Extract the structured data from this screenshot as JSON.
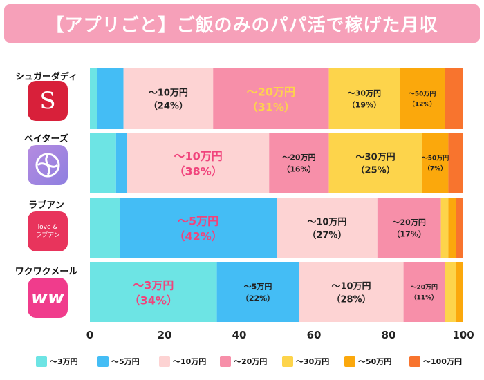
{
  "title": "【アプリごと】ご飯のみのパパ活で稼げた月収",
  "apps": [
    {
      "name": "シュガーダディ",
      "icon": "sugardaddy-s-logo-icon",
      "logo_text": "S",
      "color": "#d8203a"
    },
    {
      "name": "ペイターズ",
      "icon": "paters-swirl-logo-icon",
      "logo_text": "",
      "color": "#a57fd6"
    },
    {
      "name": "ラブアン",
      "icon": "loveanne-logo-icon",
      "logo_text": "love & ラブアン",
      "color": "#e8345c"
    },
    {
      "name": "ワクワクメール",
      "icon": "wakuwakumail-ww-logo-icon",
      "logo_text": "ww",
      "color": "#f03c8c"
    }
  ],
  "chart_data": {
    "type": "bar",
    "orientation": "horizontal",
    "stacked": true,
    "categories": [
      "シュガーダディ",
      "ペイターズ",
      "ラブアン",
      "ワクワクメール"
    ],
    "series": [
      {
        "name": "〜3万円",
        "color": "#6de4e4",
        "values": [
          2,
          7,
          8,
          34
        ]
      },
      {
        "name": "〜5万円",
        "color": "#44bdf5",
        "values": [
          7,
          3,
          42,
          22
        ]
      },
      {
        "name": "〜10万円",
        "color": "#fdd3d3",
        "values": [
          24,
          38,
          27,
          28
        ]
      },
      {
        "name": "〜20万円",
        "color": "#f78fa9",
        "values": [
          31,
          16,
          17,
          11
        ]
      },
      {
        "name": "〜30万円",
        "color": "#fdd44b",
        "values": [
          19,
          25,
          2,
          3
        ]
      },
      {
        "name": "〜50万円",
        "color": "#fba80c",
        "values": [
          12,
          7,
          2,
          2
        ]
      },
      {
        "name": "〜100万円",
        "color": "#f8742e",
        "values": [
          5,
          4,
          2,
          0
        ]
      }
    ],
    "bar_labels": [
      [
        {
          "series": 2,
          "line1": "〜10万円",
          "line2": "（24%）",
          "size": "m",
          "color": "#222222"
        },
        {
          "series": 3,
          "line1": "〜20万円",
          "line2": "（31%）",
          "size": "l",
          "color": "#fdd44b"
        },
        {
          "series": 4,
          "line1": "〜30万円",
          "line2": "（19%）",
          "size": "s",
          "color": "#222222"
        },
        {
          "series": 5,
          "line1": "〜50万円",
          "line2": "（12%）",
          "size": "xs",
          "color": "#222222"
        }
      ],
      [
        {
          "series": 2,
          "line1": "〜10万円",
          "line2": "（38%）",
          "size": "l",
          "color": "#f0447c"
        },
        {
          "series": 3,
          "line1": "〜20万円",
          "line2": "（16%）",
          "size": "s",
          "color": "#222222"
        },
        {
          "series": 4,
          "line1": "〜30万円",
          "line2": "（25%）",
          "size": "m",
          "color": "#222222"
        },
        {
          "series": 5,
          "line1": "〜50万円",
          "line2": "（7%）",
          "size": "xs",
          "color": "#222222"
        }
      ],
      [
        {
          "series": 1,
          "line1": "〜5万円",
          "line2": "（42%）",
          "size": "l",
          "color": "#f0447c"
        },
        {
          "series": 2,
          "line1": "〜10万円",
          "line2": "（27%）",
          "size": "m",
          "color": "#222222"
        },
        {
          "series": 3,
          "line1": "〜20万円",
          "line2": "（17%）",
          "size": "s",
          "color": "#222222"
        }
      ],
      [
        {
          "series": 0,
          "line1": "〜3万円",
          "line2": "（34%）",
          "size": "l",
          "color": "#f0447c"
        },
        {
          "series": 1,
          "line1": "〜5万円",
          "line2": "（22%）",
          "size": "s",
          "color": "#222222"
        },
        {
          "series": 2,
          "line1": "〜10万円",
          "line2": "（28%）",
          "size": "m",
          "color": "#222222"
        },
        {
          "series": 3,
          "line1": "〜20万円",
          "line2": "（11%）",
          "size": "xs",
          "color": "#222222"
        }
      ]
    ],
    "xlim": [
      0,
      100
    ],
    "xticks": [
      0,
      20,
      40,
      60,
      80,
      100
    ],
    "legend_position": "bottom",
    "grid": false
  }
}
